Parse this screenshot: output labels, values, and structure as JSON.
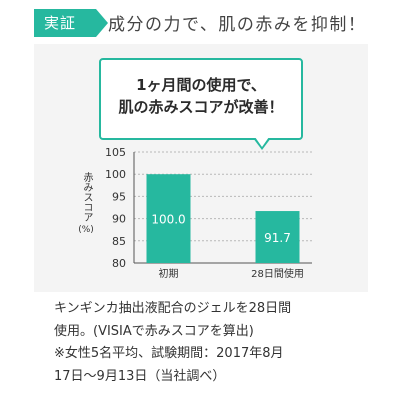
{
  "header": {
    "tag_label": "実証",
    "title": "成分の力で、肌の赤みを抑制！"
  },
  "callout": {
    "line1": "1ヶ月間の使用で、",
    "line2": "肌の赤みスコアが改善！"
  },
  "chart_data": {
    "type": "bar",
    "categories": [
      "初期",
      "28日間使用"
    ],
    "values": [
      100.0,
      91.7
    ],
    "value_labels": [
      "100.0",
      "91.7"
    ],
    "ylabel": "赤みスコア",
    "yunit": "(%)",
    "ylim": [
      80,
      105
    ],
    "yticks": [
      80,
      85,
      90,
      95,
      100,
      105
    ],
    "grid": true,
    "bar_color": "#26b89f"
  },
  "description": {
    "lines": [
      "キンギンカ抽出液配合のジェルを28日間",
      "使用。(VISIAで赤みスコアを算出)",
      "※女性5名平均、試験期間：2017年8月",
      "17日〜9月13日（当社調べ）"
    ]
  },
  "colors": {
    "accent": "#26b89f",
    "panel_bg": "#f4f4f4"
  }
}
